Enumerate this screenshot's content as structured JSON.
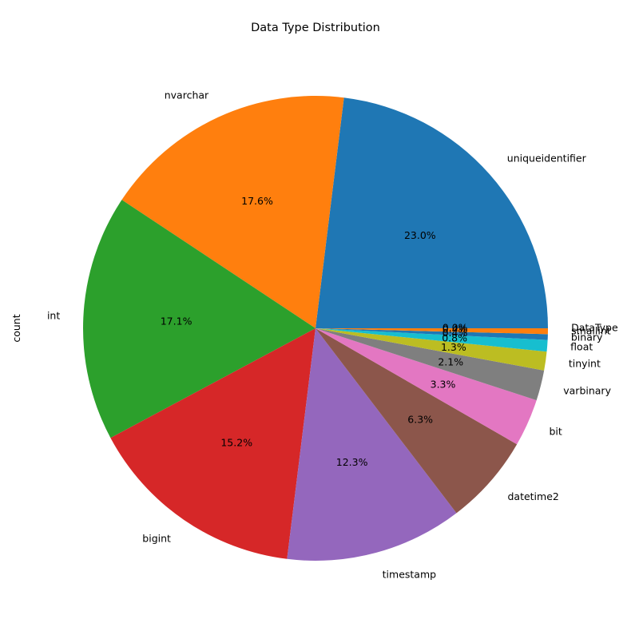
{
  "chart_data": {
    "type": "pie",
    "title": "Data Type Distribution",
    "ylabel": "count",
    "start_angle_deg": 0,
    "direction": "counterclockwise",
    "slices": [
      {
        "label": "uniqueidentifier",
        "pct": 23.0,
        "pct_label": "23.0%",
        "color": "#1f77b4"
      },
      {
        "label": "nvarchar",
        "pct": 17.6,
        "pct_label": "17.6%",
        "color": "#ff7f0e"
      },
      {
        "label": "int",
        "pct": 17.1,
        "pct_label": "17.1%",
        "color": "#2ca02c"
      },
      {
        "label": "bigint",
        "pct": 15.2,
        "pct_label": "15.2%",
        "color": "#d62728"
      },
      {
        "label": "timestamp",
        "pct": 12.3,
        "pct_label": "12.3%",
        "color": "#9467bd"
      },
      {
        "label": "datetime2",
        "pct": 6.3,
        "pct_label": "6.3%",
        "color": "#8c564b"
      },
      {
        "label": "bit",
        "pct": 3.3,
        "pct_label": "3.3%",
        "color": "#e377c2"
      },
      {
        "label": "varbinary",
        "pct": 2.1,
        "pct_label": "2.1%",
        "color": "#7f7f7f"
      },
      {
        "label": "tinyint",
        "pct": 1.3,
        "pct_label": "1.3%",
        "color": "#bcbd22"
      },
      {
        "label": "float",
        "pct": 0.8,
        "pct_label": "0.8%",
        "color": "#17becf"
      },
      {
        "label": "binary",
        "pct": 0.4,
        "pct_label": "0.4%",
        "color": "#1f77b4"
      },
      {
        "label": "smallint",
        "pct": 0.4,
        "pct_label": "0.4%",
        "color": "#ff7f0e"
      },
      {
        "label": "DataType",
        "pct": 0.0,
        "pct_label": "0.0%",
        "color": "#2ca02c"
      }
    ]
  }
}
